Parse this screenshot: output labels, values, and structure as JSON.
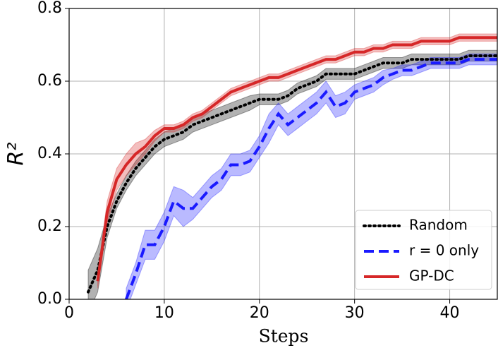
{
  "chart_data": {
    "type": "line",
    "x_label": "Steps",
    "y_label": "R²",
    "x": [
      2,
      3,
      4,
      5,
      6,
      7,
      8,
      9,
      10,
      11,
      12,
      13,
      14,
      15,
      16,
      17,
      18,
      19,
      20,
      21,
      22,
      23,
      24,
      25,
      26,
      27,
      28,
      29,
      30,
      31,
      32,
      33,
      34,
      35,
      36,
      37,
      38,
      39,
      40,
      41,
      42,
      43,
      44,
      45
    ],
    "series": [
      {
        "name": "Random",
        "color": "#000000",
        "linestyle": "dotted",
        "values": [
          0.02,
          0.08,
          0.2,
          0.27,
          0.32,
          0.36,
          0.39,
          0.42,
          0.44,
          0.45,
          0.46,
          0.48,
          0.49,
          0.5,
          0.51,
          0.52,
          0.53,
          0.54,
          0.55,
          0.55,
          0.55,
          0.56,
          0.58,
          0.59,
          0.6,
          0.62,
          0.62,
          0.62,
          0.62,
          0.63,
          0.64,
          0.65,
          0.65,
          0.65,
          0.66,
          0.66,
          0.66,
          0.66,
          0.66,
          0.66,
          0.67,
          0.67,
          0.67,
          0.67
        ],
        "error": [
          0.06,
          0.06,
          0.03,
          0.02,
          0.02,
          0.02,
          0.02,
          0.02,
          0.02,
          0.02,
          0.02,
          0.02,
          0.02,
          0.02,
          0.02,
          0.02,
          0.02,
          0.02,
          0.015,
          0.015,
          0.015,
          0.015,
          0.015,
          0.015,
          0.015,
          0.015,
          0.015,
          0.015,
          0.015,
          0.015,
          0.015,
          0.015,
          0.015,
          0.015,
          0.015,
          0.015,
          0.015,
          0.015,
          0.015,
          0.015,
          0.015,
          0.015,
          0.015,
          0.015
        ]
      },
      {
        "name": "r = 0 only",
        "color": "#1a1aff",
        "linestyle": "dashed",
        "values": [
          null,
          null,
          null,
          null,
          0.0,
          0.07,
          0.15,
          0.15,
          0.2,
          0.27,
          0.25,
          0.25,
          0.28,
          0.31,
          0.33,
          0.37,
          0.37,
          0.38,
          0.42,
          0.47,
          0.51,
          0.48,
          0.5,
          0.52,
          0.54,
          0.57,
          0.53,
          0.54,
          0.57,
          0.58,
          0.59,
          0.61,
          0.62,
          0.63,
          0.63,
          0.64,
          0.65,
          0.65,
          0.65,
          0.65,
          0.66,
          0.66,
          0.66,
          0.66
        ],
        "error": [
          null,
          null,
          null,
          null,
          0.03,
          0.03,
          0.04,
          0.04,
          0.04,
          0.04,
          0.05,
          0.03,
          0.03,
          0.03,
          0.03,
          0.03,
          0.03,
          0.03,
          0.03,
          0.04,
          0.03,
          0.03,
          0.03,
          0.03,
          0.03,
          0.03,
          0.03,
          0.03,
          0.02,
          0.02,
          0.02,
          0.02,
          0.015,
          0.015,
          0.015,
          0.015,
          0.015,
          0.015,
          0.015,
          0.015,
          0.015,
          0.015,
          0.015,
          0.015
        ]
      },
      {
        "name": "GP-DC",
        "color": "#d62728",
        "linestyle": "solid",
        "values": [
          null,
          0.05,
          0.24,
          0.33,
          0.37,
          0.4,
          0.42,
          0.45,
          0.47,
          0.47,
          0.48,
          0.5,
          0.51,
          0.53,
          0.55,
          0.57,
          0.58,
          0.59,
          0.6,
          0.61,
          0.61,
          0.62,
          0.63,
          0.64,
          0.65,
          0.66,
          0.66,
          0.67,
          0.68,
          0.68,
          0.69,
          0.69,
          0.7,
          0.7,
          0.7,
          0.71,
          0.71,
          0.71,
          0.71,
          0.72,
          0.72,
          0.72,
          0.72,
          0.72
        ],
        "error": [
          null,
          0.02,
          0.03,
          0.03,
          0.03,
          0.03,
          0.02,
          0.015,
          0.01,
          0.01,
          0.01,
          0.01,
          0.01,
          0.01,
          0.01,
          0.01,
          0.01,
          0.01,
          0.01,
          0.01,
          0.01,
          0.01,
          0.01,
          0.01,
          0.01,
          0.01,
          0.01,
          0.01,
          0.01,
          0.01,
          0.01,
          0.01,
          0.01,
          0.01,
          0.01,
          0.01,
          0.01,
          0.01,
          0.01,
          0.01,
          0.01,
          0.01,
          0.01,
          0.01
        ]
      }
    ],
    "xlim": [
      0,
      45
    ],
    "xticks": [
      0,
      10,
      20,
      30,
      40
    ],
    "ylim": [
      0,
      0.8
    ],
    "yticks": [
      {
        "value": 0,
        "label": "0.0"
      },
      0.2,
      0.4,
      0.6,
      0.8
    ],
    "grid": true,
    "legend": "lower right"
  }
}
